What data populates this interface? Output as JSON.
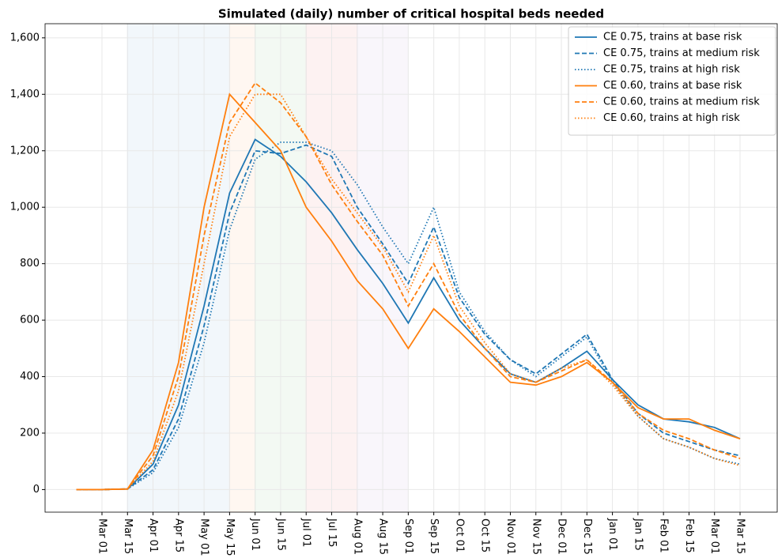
{
  "chart_data": {
    "type": "line",
    "title": "Simulated (daily) number of critical hospital beds needed",
    "categories": [
      null,
      "Mar 01",
      "Mar 15",
      "Apr 01",
      "Apr 15",
      "May 01",
      "May 15",
      "Jun 01",
      "Jun 15",
      "Jul 01",
      "Jul 15",
      "Aug 01",
      "Aug 15",
      "Sep 01",
      "Sep 15",
      "Oct 01",
      "Oct 15",
      "Nov 01",
      "Nov 15",
      "Dec 01",
      "Dec 15",
      "Jan 01",
      "Jan 15",
      "Feb 01",
      "Feb 15",
      "Mar 01",
      "Mar 15"
    ],
    "series": [
      {
        "name": "CE 0.75, trains at base risk",
        "color": "#1f77b4",
        "linestyle": "solid",
        "values": [
          0,
          0,
          2,
          90,
          300,
          650,
          1050,
          1240,
          1180,
          1090,
          980,
          850,
          730,
          590,
          750,
          600,
          500,
          410,
          380,
          430,
          490,
          390,
          300,
          250,
          240,
          220,
          180
        ]
      },
      {
        "name": "CE 0.75, trains at medium risk",
        "color": "#1f77b4",
        "linestyle": "dashed",
        "values": [
          0,
          0,
          2,
          70,
          250,
          580,
          980,
          1200,
          1190,
          1220,
          1180,
          1000,
          870,
          730,
          930,
          680,
          550,
          460,
          410,
          480,
          550,
          390,
          270,
          200,
          170,
          140,
          120
        ]
      },
      {
        "name": "CE 0.75, trains at high risk",
        "color": "#1f77b4",
        "linestyle": "dotted",
        "values": [
          0,
          0,
          2,
          60,
          220,
          520,
          920,
          1170,
          1230,
          1230,
          1200,
          1080,
          930,
          800,
          1000,
          700,
          560,
          460,
          400,
          470,
          540,
          380,
          260,
          180,
          150,
          110,
          90
        ]
      },
      {
        "name": "CE 0.60, trains at base risk",
        "color": "#ff7f0e",
        "linestyle": "solid",
        "values": [
          0,
          0,
          2,
          140,
          450,
          1000,
          1400,
          1300,
          1200,
          1000,
          880,
          740,
          640,
          500,
          640,
          560,
          470,
          380,
          370,
          400,
          450,
          380,
          290,
          250,
          250,
          210,
          180
        ]
      },
      {
        "name": "CE 0.60, trains at medium risk",
        "color": "#ff7f0e",
        "linestyle": "dashed",
        "values": [
          0,
          0,
          2,
          120,
          400,
          900,
          1300,
          1440,
          1370,
          1250,
          1080,
          950,
          830,
          650,
          800,
          620,
          500,
          400,
          380,
          420,
          460,
          380,
          270,
          210,
          180,
          140,
          110
        ]
      },
      {
        "name": "CE 0.60, trains at high risk",
        "color": "#ff7f0e",
        "linestyle": "dotted",
        "values": [
          0,
          0,
          2,
          100,
          350,
          800,
          1250,
          1400,
          1400,
          1250,
          1100,
          980,
          860,
          700,
          900,
          650,
          520,
          410,
          380,
          430,
          460,
          370,
          260,
          180,
          150,
          110,
          85
        ]
      }
    ],
    "spans": [
      {
        "from": "Mar 15",
        "to": "May 15",
        "color": "#1f77b4"
      },
      {
        "from": "May 15",
        "to": "Jun 01",
        "color": "#ff7f0e"
      },
      {
        "from": "Jun 01",
        "to": "Jul 01",
        "color": "#2ca02c"
      },
      {
        "from": "Jul 01",
        "to": "Aug 01",
        "color": "#d62728"
      },
      {
        "from": "Aug 01",
        "to": "Sep 01",
        "color": "#9467bd"
      }
    ],
    "ylim": [
      -80,
      1650
    ],
    "yticks": [
      0,
      200,
      400,
      600,
      800,
      {
        "value": 1000,
        "label": "1,000"
      },
      {
        "value": 1200,
        "label": "1,200"
      },
      {
        "value": 1400,
        "label": "1,400"
      },
      {
        "value": 1600,
        "label": "1,600"
      }
    ],
    "grid": true,
    "legend": "upper right"
  }
}
